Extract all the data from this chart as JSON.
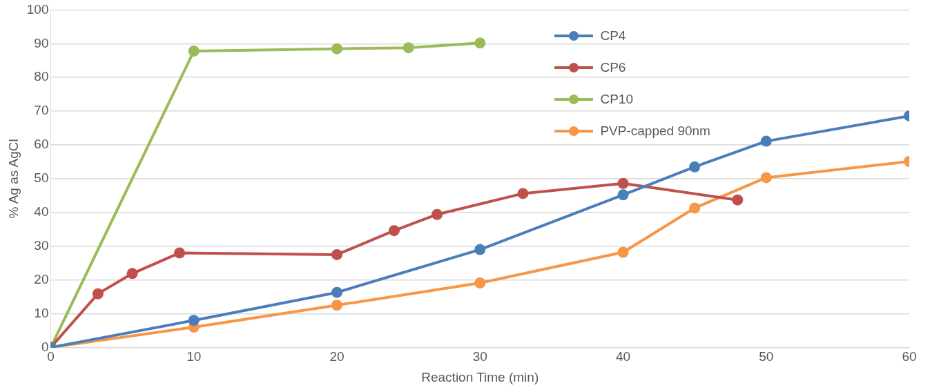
{
  "chart_data": {
    "type": "line",
    "xlabel": "Reaction Time (min)",
    "ylabel": "% Ag as AgCl",
    "xlim": [
      0,
      60
    ],
    "xticks": [
      0,
      10,
      20,
      30,
      40,
      50,
      60
    ],
    "ylim": [
      0,
      100
    ],
    "yticks": [
      0,
      10,
      20,
      30,
      40,
      50,
      60,
      70,
      80,
      90,
      100
    ],
    "grid": "y",
    "legend": "top right",
    "marker": "circle",
    "line_style": "solid",
    "series": [
      {
        "name": "CP4",
        "color": "#4a7ebb",
        "x": [
          0,
          10,
          20,
          30,
          40,
          45,
          50,
          60
        ],
        "values": [
          0,
          8.0,
          16.3,
          29.0,
          45.2,
          53.5,
          61.1,
          68.6
        ]
      },
      {
        "name": "CP6",
        "color": "#c0504d",
        "x": [
          0,
          3.3,
          5.7,
          9.0,
          20.0,
          24.0,
          27.0,
          33.0,
          40.0,
          48.0
        ],
        "values": [
          0,
          15.9,
          21.9,
          28.0,
          27.5,
          34.6,
          39.4,
          45.6,
          48.6,
          43.7
        ]
      },
      {
        "name": "CP10",
        "color": "#9bbb59",
        "x": [
          0,
          10,
          20,
          25,
          30
        ],
        "values": [
          0,
          87.8,
          88.5,
          88.8,
          90.2
        ]
      },
      {
        "name": "PVP-capped 90nm",
        "color": "#f79646",
        "x": [
          0,
          10,
          20,
          30,
          40,
          45,
          50,
          60
        ],
        "values": [
          0,
          6.0,
          12.5,
          19.1,
          28.2,
          41.3,
          50.3,
          55.1
        ]
      }
    ]
  }
}
